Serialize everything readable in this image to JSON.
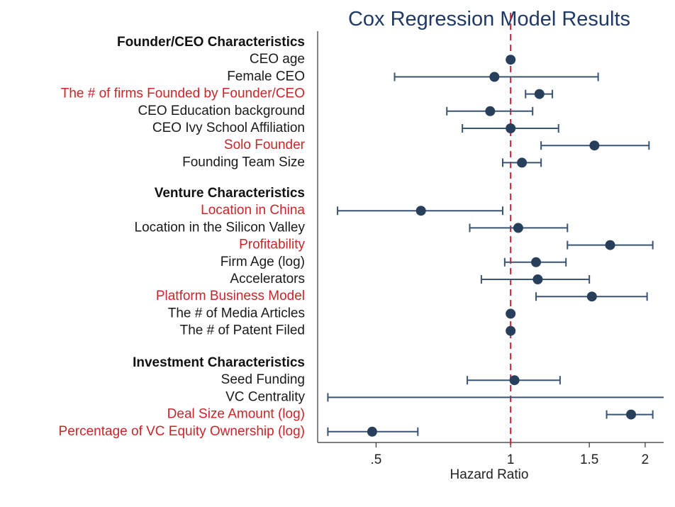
{
  "chart_data": {
    "type": "forest",
    "title": "Cox Regression Model Results",
    "xlabel": "Hazard Ratio",
    "x_scale": "log",
    "xlim": [
      0.37,
      2.2
    ],
    "reference_line": 1,
    "ticks": [
      {
        "value": 0.5,
        "label": ".5"
      },
      {
        "value": 1,
        "label": "1"
      },
      {
        "value": 1.5,
        "label": "1.5"
      },
      {
        "value": 2,
        "label": "2"
      }
    ],
    "groups": [
      {
        "label": "Founder/CEO Characteristics",
        "rows": [
          {
            "label": "CEO age",
            "estimate": 1.0,
            "lower": 1.0,
            "upper": 1.0,
            "highlight": false
          },
          {
            "label": "Female CEO",
            "estimate": 0.92,
            "lower": 0.55,
            "upper": 1.57,
            "highlight": false
          },
          {
            "label": "The # of firms Founded by Founder/CEO",
            "estimate": 1.16,
            "lower": 1.08,
            "upper": 1.24,
            "highlight": true
          },
          {
            "label": "CEO Education background",
            "estimate": 0.9,
            "lower": 0.72,
            "upper": 1.12,
            "highlight": false
          },
          {
            "label": "CEO Ivy School Affiliation",
            "estimate": 1.0,
            "lower": 0.78,
            "upper": 1.28,
            "highlight": false
          },
          {
            "label": "Solo Founder",
            "estimate": 1.54,
            "lower": 1.17,
            "upper": 2.04,
            "highlight": true
          },
          {
            "label": "Founding Team Size",
            "estimate": 1.06,
            "lower": 0.96,
            "upper": 1.17,
            "highlight": false
          }
        ]
      },
      {
        "label": "Venture Characteristics",
        "rows": [
          {
            "label": "Location in China",
            "estimate": 0.63,
            "lower": 0.41,
            "upper": 0.96,
            "highlight": true
          },
          {
            "label": "Location in the Silicon Valley",
            "estimate": 1.04,
            "lower": 0.81,
            "upper": 1.34,
            "highlight": false
          },
          {
            "label": "Profitability",
            "estimate": 1.67,
            "lower": 1.34,
            "upper": 2.08,
            "highlight": true
          },
          {
            "label": "Firm Age (log)",
            "estimate": 1.14,
            "lower": 0.97,
            "upper": 1.33,
            "highlight": false
          },
          {
            "label": "Accelerators",
            "estimate": 1.15,
            "lower": 0.86,
            "upper": 1.5,
            "highlight": false
          },
          {
            "label": "Platform Business Model",
            "estimate": 1.52,
            "lower": 1.14,
            "upper": 2.02,
            "highlight": true
          },
          {
            "label": "The # of Media Articles",
            "estimate": 1.0,
            "lower": 1.0,
            "upper": 1.0,
            "highlight": false
          },
          {
            "label": "The # of Patent Filed",
            "estimate": 1.0,
            "lower": 1.0,
            "upper": 1.0,
            "highlight": false
          }
        ]
      },
      {
        "label": "Investment Characteristics",
        "rows": [
          {
            "label": "Seed Funding",
            "estimate": 1.02,
            "lower": 0.8,
            "upper": 1.29,
            "highlight": false
          },
          {
            "label": "VC Centrality",
            "estimate": null,
            "lower": 0.39,
            "upper": 2.2,
            "highlight": false
          },
          {
            "label": "Deal Size Amount (log)",
            "estimate": 1.86,
            "lower": 1.64,
            "upper": 2.08,
            "highlight": true
          },
          {
            "label": "Percentage of VC Equity Ownership (log)",
            "estimate": 0.49,
            "lower": 0.39,
            "upper": 0.62,
            "highlight": true
          }
        ]
      }
    ],
    "colors": {
      "point": "#283f5c",
      "whisker": "#3a5472",
      "reference": "#d0203a",
      "highlight_label": "#c8262a",
      "label": "#1a1a1a",
      "title": "#1f3a66",
      "axis": "#333333"
    }
  }
}
